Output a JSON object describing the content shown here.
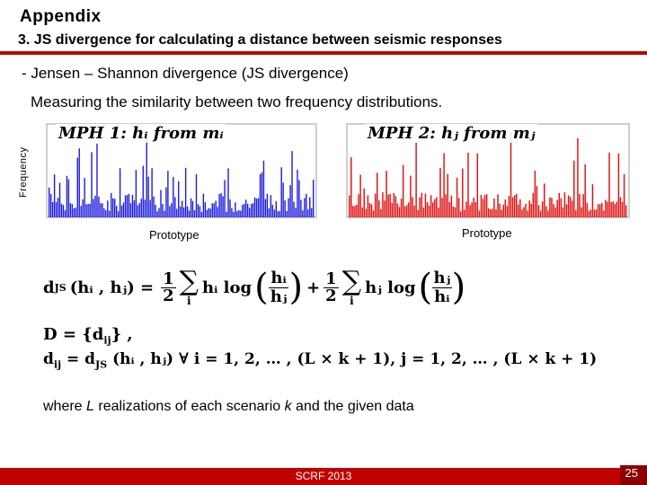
{
  "slide": {
    "title": "Appendix",
    "subtitle": "3. JS divergence for calculating a distance between seismic responses",
    "bullet": "- Jensen – Shannon divergence (JS divergence)",
    "description": "Measuring the similarity between two frequency distributions.",
    "ylabel": "Frequency",
    "where_prefix": "where ",
    "where_L": "L",
    "where_mid": " realizations of each scenario ",
    "where_k": "k",
    "where_suffix": " and the given data",
    "footer": "SCRF 2013",
    "page_number": "25"
  },
  "histograms": [
    {
      "title": "MPH 1: hᵢ from mᵢ",
      "xlabel": "Prototype",
      "color": "#1a1adb"
    },
    {
      "title": "MPH 2: hⱼ from mⱼ",
      "xlabel": "Prototype",
      "color": "#e01010"
    }
  ],
  "formulas": {
    "lhs": "d",
    "lhs_sub": "JS",
    "args": "(hᵢ , hⱼ) =",
    "frac_num": "1",
    "frac_den": "2",
    "sum": "∑",
    "sum_idx_1": "i",
    "sum_idx_2": "i",
    "term1": "hᵢ log",
    "ratio1_num": "hᵢ",
    "ratio1_den": "hⱼ",
    "plus": "+",
    "term2": "hⱼ log",
    "ratio2_num": "hⱼ",
    "ratio2_den": "hᵢ",
    "set_def": "D = {d",
    "set_sub": "ij",
    "set_end": "} ,",
    "dij": "d",
    "dij_sub": "ij",
    "dij_eq": "= d",
    "dij_eq_sub": "JS",
    "dij_args": "(hᵢ , hⱼ)   ∀ i = 1, 2, … , (L × k + 1), j = 1, 2, … , (L × k + 1)"
  }
}
